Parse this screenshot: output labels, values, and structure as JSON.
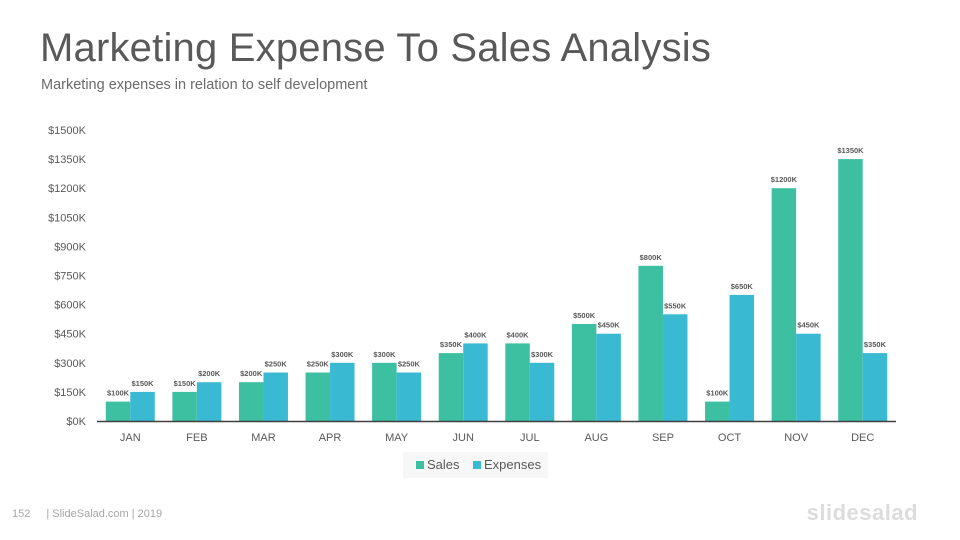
{
  "slide": {
    "title": "Marketing Expense To Sales Analysis",
    "subtitle": "Marketing expenses in relation to self development",
    "page_number": "152",
    "footer_text": "| SlideSalad.com | 2019",
    "brand": "slidesalad"
  },
  "colors": {
    "sales": "#3dbfa2",
    "expenses": "#3ab9d2",
    "axis_text": "#595959",
    "label_text": "#595959"
  },
  "chart_data": {
    "type": "bar",
    "title": "",
    "xlabel": "",
    "ylabel": "",
    "categories": [
      "JAN",
      "FEB",
      "MAR",
      "APR",
      "MAY",
      "JUN",
      "JUL",
      "AUG",
      "SEP",
      "OCT",
      "NOV",
      "DEC"
    ],
    "series": [
      {
        "name": "Sales",
        "values": [
          100,
          150,
          200,
          250,
          300,
          350,
          400,
          500,
          800,
          100,
          1200,
          1350
        ],
        "labels": [
          "$100K",
          "$150K",
          "$200K",
          "$250K",
          "$300K",
          "$350K",
          "$400K",
          "$500K",
          "$800K",
          "$100K",
          "$1200K",
          "$1350K"
        ]
      },
      {
        "name": "Expenses",
        "values": [
          150,
          200,
          250,
          300,
          250,
          400,
          300,
          450,
          550,
          650,
          450,
          350
        ],
        "labels": [
          "$150K",
          "$200K",
          "$250K",
          "$300K",
          "$250K",
          "$400K",
          "$300K",
          "$450K",
          "$550K",
          "$650K",
          "$450K",
          "$350K"
        ]
      }
    ],
    "ylim": [
      0,
      1500
    ],
    "yticks": [
      0,
      150,
      300,
      450,
      600,
      750,
      900,
      1050,
      1200,
      1350,
      1500
    ],
    "ytick_labels": [
      "$0K",
      "$150K",
      "$300K",
      "$450K",
      "$600K",
      "$750K",
      "$900K",
      "$1050K",
      "$1200K",
      "$1350K",
      "$1500K"
    ],
    "grid": false,
    "legend": "bottom"
  }
}
